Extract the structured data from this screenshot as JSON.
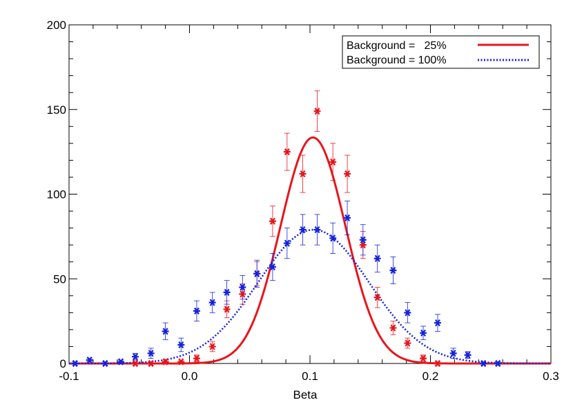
{
  "chart_data": {
    "type": "scatter",
    "xlabel": "Beta",
    "ylabel": "",
    "xlim": [
      -0.1,
      0.3
    ],
    "ylim": [
      0,
      200
    ],
    "x_ticks": [
      -0.1,
      0.0,
      0.1,
      0.2,
      0.3
    ],
    "x_tick_labels": [
      "-0.1",
      "0.0",
      "0.1",
      "0.2",
      "0.3"
    ],
    "y_ticks": [
      0,
      50,
      100,
      150,
      200
    ],
    "y_tick_labels": [
      "0",
      "50",
      "100",
      "150",
      "200"
    ],
    "grid": false,
    "legend_position": "top-right",
    "legend": [
      {
        "label": "Background =   25%",
        "color": "#e8141b",
        "style": "solid"
      },
      {
        "label": "Background = 100%",
        "color": "#1421e0",
        "style": "dotted"
      }
    ],
    "series": [
      {
        "name": "Background =   25%",
        "color": "#e8141b",
        "marker": "asterisk",
        "line_style": "solid",
        "x": [
          -0.045,
          -0.032,
          -0.02,
          -0.007,
          0.006,
          0.019,
          0.031,
          0.044,
          0.056,
          0.069,
          0.081,
          0.094,
          0.106,
          0.119,
          0.131,
          0.144,
          0.156,
          0.169,
          0.181,
          0.194,
          0.206
        ],
        "y": [
          0,
          0,
          1,
          1,
          3,
          10,
          32,
          41,
          53,
          84,
          125,
          112,
          149,
          119,
          112,
          70,
          39,
          21,
          12,
          3,
          0
        ],
        "err": [
          1,
          1,
          1,
          1,
          2,
          3,
          5,
          6,
          7,
          9,
          11,
          11,
          12,
          11,
          11,
          8,
          6,
          4,
          3,
          2,
          1
        ],
        "fit": {
          "model": "gaussian",
          "amplitude": 133.5,
          "mean": 0.1025,
          "sigma": 0.027
        }
      },
      {
        "name": "Background = 100%",
        "color": "#1421e0",
        "marker": "asterisk",
        "line_style": "dotted",
        "x": [
          -0.095,
          -0.083,
          -0.07,
          -0.057,
          -0.045,
          -0.032,
          -0.02,
          -0.007,
          0.006,
          0.019,
          0.031,
          0.044,
          0.056,
          0.069,
          0.081,
          0.094,
          0.106,
          0.119,
          0.131,
          0.144,
          0.156,
          0.169,
          0.181,
          0.194,
          0.206,
          0.219,
          0.231,
          0.244,
          0.256
        ],
        "y": [
          0,
          2,
          0,
          1,
          4,
          6,
          19,
          11,
          31,
          36,
          42,
          45,
          53,
          57,
          71,
          79,
          79,
          74,
          86,
          73,
          62,
          55,
          30,
          18,
          24,
          6,
          5,
          0,
          0
        ],
        "err": [
          1,
          1,
          1,
          1,
          2,
          3,
          5,
          4,
          6,
          6,
          7,
          7,
          8,
          8,
          9,
          9,
          9,
          9,
          10,
          9,
          8,
          8,
          6,
          4,
          5,
          3,
          2,
          1,
          1
        ],
        "fit": {
          "model": "gaussian",
          "amplitude": 79,
          "mean": 0.103,
          "sigma": 0.046
        }
      }
    ]
  }
}
